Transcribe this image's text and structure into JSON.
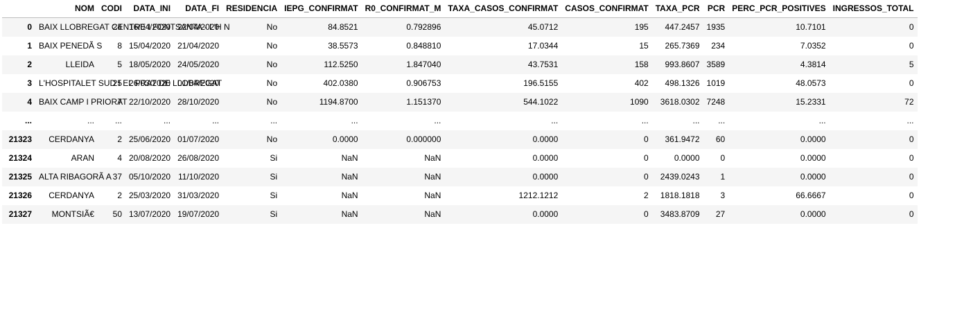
{
  "table": {
    "columns": [
      "",
      "NOM",
      "CODI",
      "DATA_INI",
      "DATA_FI",
      "RESIDENCIA",
      "IEPG_CONFIRMAT",
      "R0_CONFIRMAT_M",
      "TAXA_CASOS_CONFIRMAT",
      "CASOS_CONFIRMAT",
      "TAXA_PCR",
      "PCR",
      "PERC_PCR_POSITIVES",
      "INGRESSOS_TOTAL"
    ],
    "rows": [
      {
        "index": "0",
        "cells": [
          "BAIX LLOBREGAT CENTRE I FONTSANTA - L'H N",
          "24",
          "16/04/2020",
          "22/04/2020",
          "No",
          "84.8521",
          "0.792896",
          "45.0712",
          "195",
          "447.2457",
          "1935",
          "10.7101",
          "0"
        ]
      },
      {
        "index": "1",
        "cells": [
          "BAIX PENEDÃ  S",
          "8",
          "15/04/2020",
          "21/04/2020",
          "No",
          "38.5573",
          "0.848810",
          "17.0344",
          "15",
          "265.7369",
          "234",
          "7.0352",
          "0"
        ]
      },
      {
        "index": "2",
        "cells": [
          "LLEIDA",
          "5",
          "18/05/2020",
          "24/05/2020",
          "No",
          "112.5250",
          "1.847040",
          "43.7531",
          "158",
          "993.8607",
          "3589",
          "4.3814",
          "5"
        ]
      },
      {
        "index": "3",
        "cells": [
          "L'HOSPITALET SUD I EL PRAT DE LLOBREGAT",
          "25",
          "26/03/2020",
          "01/04/2020",
          "No",
          "402.0380",
          "0.906753",
          "196.5155",
          "402",
          "498.1326",
          "1019",
          "48.0573",
          "0"
        ]
      },
      {
        "index": "4",
        "cells": [
          "BAIX CAMP I PRIORAT",
          "7",
          "22/10/2020",
          "28/10/2020",
          "No",
          "1194.8700",
          "1.151370",
          "544.1022",
          "1090",
          "3618.0302",
          "7248",
          "15.2331",
          "72"
        ]
      },
      {
        "index": "...",
        "cells": [
          "...",
          "...",
          "...",
          "...",
          "...",
          "...",
          "...",
          "...",
          "...",
          "...",
          "...",
          "...",
          "..."
        ]
      },
      {
        "index": "21323",
        "cells": [
          "CERDANYA",
          "2",
          "25/06/2020",
          "01/07/2020",
          "No",
          "0.0000",
          "0.000000",
          "0.0000",
          "0",
          "361.9472",
          "60",
          "0.0000",
          "0"
        ]
      },
      {
        "index": "21324",
        "cells": [
          "ARAN",
          "4",
          "20/08/2020",
          "26/08/2020",
          "Si",
          "NaN",
          "NaN",
          "0.0000",
          "0",
          "0.0000",
          "0",
          "0.0000",
          "0"
        ]
      },
      {
        "index": "21325",
        "cells": [
          "ALTA RIBAGORÃ  A",
          "37",
          "05/10/2020",
          "11/10/2020",
          "Si",
          "NaN",
          "NaN",
          "0.0000",
          "0",
          "2439.0243",
          "1",
          "0.0000",
          "0"
        ]
      },
      {
        "index": "21326",
        "cells": [
          "CERDANYA",
          "2",
          "25/03/2020",
          "31/03/2020",
          "Si",
          "NaN",
          "NaN",
          "1212.1212",
          "2",
          "1818.1818",
          "3",
          "66.6667",
          "0"
        ]
      },
      {
        "index": "21327",
        "cells": [
          "MONTSIÃ€",
          "50",
          "13/07/2020",
          "19/07/2020",
          "Si",
          "NaN",
          "NaN",
          "0.0000",
          "0",
          "3483.8709",
          "27",
          "0.0000",
          "0"
        ]
      }
    ]
  },
  "colors": {
    "stripe": "#f5f5f5",
    "header_border": "#bdbdbd",
    "background": "#ffffff"
  }
}
